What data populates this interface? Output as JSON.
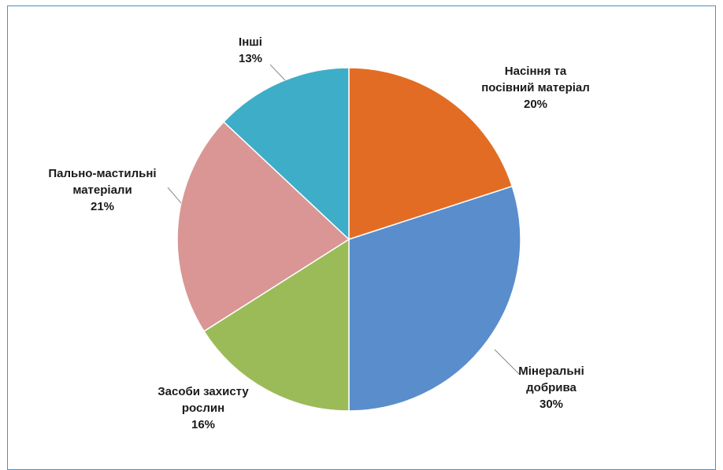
{
  "chart_data": {
    "type": "pie",
    "slices": [
      {
        "label_lines": [
          "Насіння та",
          "посівний матеріал"
        ],
        "percent_label": "20%",
        "value": 20,
        "color": "#e36c24"
      },
      {
        "label_lines": [
          "Мінеральні",
          "добрива"
        ],
        "percent_label": "30%",
        "value": 30,
        "color": "#5a8dcb"
      },
      {
        "label_lines": [
          "Засоби захисту",
          "рослин"
        ],
        "percent_label": "16%",
        "value": 16,
        "color": "#9bbb59"
      },
      {
        "label_lines": [
          "Пально-мастильні",
          "матеріали"
        ],
        "percent_label": "21%",
        "value": 21,
        "color": "#d99694"
      },
      {
        "label_lines": [
          "Інші"
        ],
        "percent_label": "13%",
        "value": 13,
        "color": "#3eadc7"
      }
    ],
    "start": "12 o'clock",
    "direction": "clockwise",
    "slice_border_color": "#ffffff",
    "leader_line_color": "#8c8c8c",
    "frame_color": "#4a90c8"
  }
}
